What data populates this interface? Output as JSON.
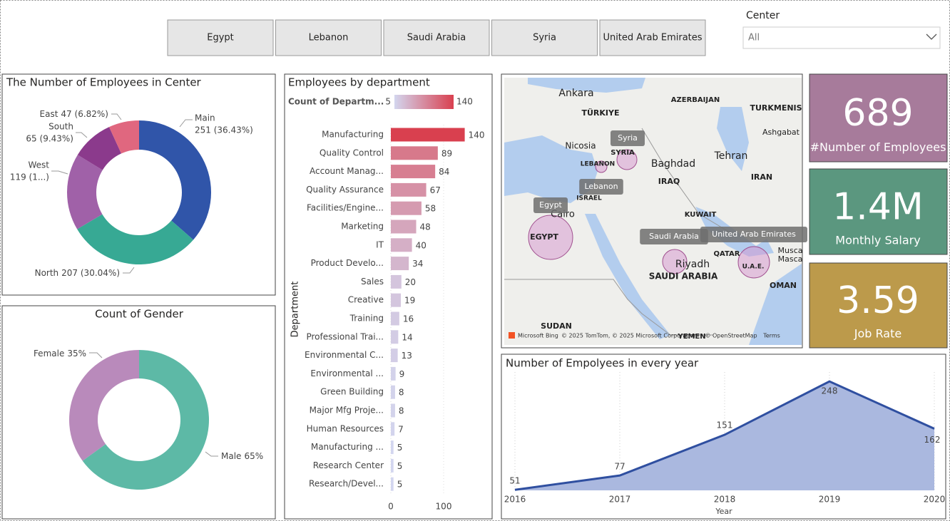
{
  "filters": {
    "buttons": [
      "Egypt",
      "Lebanon",
      "Saudi Arabia",
      "Syria",
      "United Arab Emirates"
    ],
    "slicer": {
      "title": "Center",
      "value": "All"
    }
  },
  "chart_data": [
    {
      "type": "donut",
      "title": "The Number of Employees in Center",
      "categories": [
        "Main",
        "North",
        "West",
        "South",
        "East"
      ],
      "values": [
        251,
        207,
        119,
        65,
        47
      ],
      "value_labels": [
        "251 (36.43%)",
        "207 (30.04%)",
        "119 (1...)",
        "65 (9.43%)",
        "47 (6.82%)"
      ],
      "colors": [
        "#3055a9",
        "#37a994",
        "#a061a8",
        "#8b3a8c",
        "#e0677f"
      ]
    },
    {
      "type": "donut",
      "title": "Count of Gender",
      "categories": [
        "Male",
        "Female"
      ],
      "values": [
        65,
        35
      ],
      "value_labels": [
        "65%",
        "35%"
      ],
      "colors": [
        "#5db9a6",
        "#b98abb"
      ]
    },
    {
      "type": "bar",
      "title": "Employees by department",
      "legend_title": "Count of Departm...",
      "color_range": [
        5,
        140
      ],
      "color_min": "#d3d6ef",
      "color_max": "#d9404f",
      "y_label": "Department",
      "categories": [
        "Manufacturing",
        "Quality Control",
        "Account Manag...",
        "Quality Assurance",
        "Facilities/Engine...",
        "Marketing",
        "IT",
        "Product Develo...",
        "Sales",
        "Creative",
        "Training",
        "Professional Trai...",
        "Environmental C...",
        "Environmental ...",
        "Green Building",
        "Major Mfg Proje...",
        "Human Resources",
        "Manufacturing ...",
        "Research Center",
        "Research/Devel..."
      ],
      "values": [
        140,
        89,
        84,
        67,
        58,
        48,
        40,
        34,
        20,
        19,
        16,
        14,
        13,
        9,
        8,
        8,
        7,
        5,
        5,
        5
      ],
      "xlim": [
        0,
        150
      ],
      "xticks": [
        0,
        100
      ],
      "grid": true
    },
    {
      "type": "area",
      "title": "Number of Empolyees in every year",
      "x": [
        2016,
        2017,
        2018,
        2019,
        2020
      ],
      "values": [
        51,
        77,
        151,
        248,
        162
      ],
      "x_label": "Year",
      "xlim": [
        2016,
        2020
      ],
      "xticks": [
        2016,
        2017,
        2018,
        2019,
        2020
      ],
      "ylim": [
        50,
        265
      ],
      "color": "#2f4fa0",
      "fill": "#aab8df",
      "grid": true
    }
  ],
  "map": {
    "places": [
      "Ankara",
      "TÜRKIYE",
      "AZERBAIJAN",
      "TURKMENIS",
      "Ashgabat",
      "Nicosia",
      "SYRIA",
      "LEBANON",
      "Baghdad",
      "Tehran",
      "IRAQ",
      "IRAN",
      "ISRAEL",
      "Cairo",
      "KUWAIT",
      "EGYPT",
      "QATAR",
      "Riyadh",
      "SAUDI ARABIA",
      "U.A.E.",
      "OMAN",
      "Musca",
      "Masca",
      "SUDAN",
      "YEMEN"
    ],
    "bubbles": [
      "Syria",
      "Lebanon",
      "Egypt",
      "Saudi Arabia",
      "United Arab Emirates"
    ],
    "credits": [
      "Microsoft Bing",
      "© 2025 TomTom, © 2025 Microsoft Corporation",
      "© OpenStreetMap",
      "Terms"
    ]
  },
  "cards": [
    {
      "value": 689,
      "label": "#Number of Employees",
      "color": "#a77b9b"
    },
    {
      "value": 1400000,
      "value_label": "1.4M",
      "label": "Monthly Salary",
      "color": "#5b977f"
    },
    {
      "value": 3.59,
      "label": "Job Rate",
      "color": "#bc9a4b"
    }
  ]
}
